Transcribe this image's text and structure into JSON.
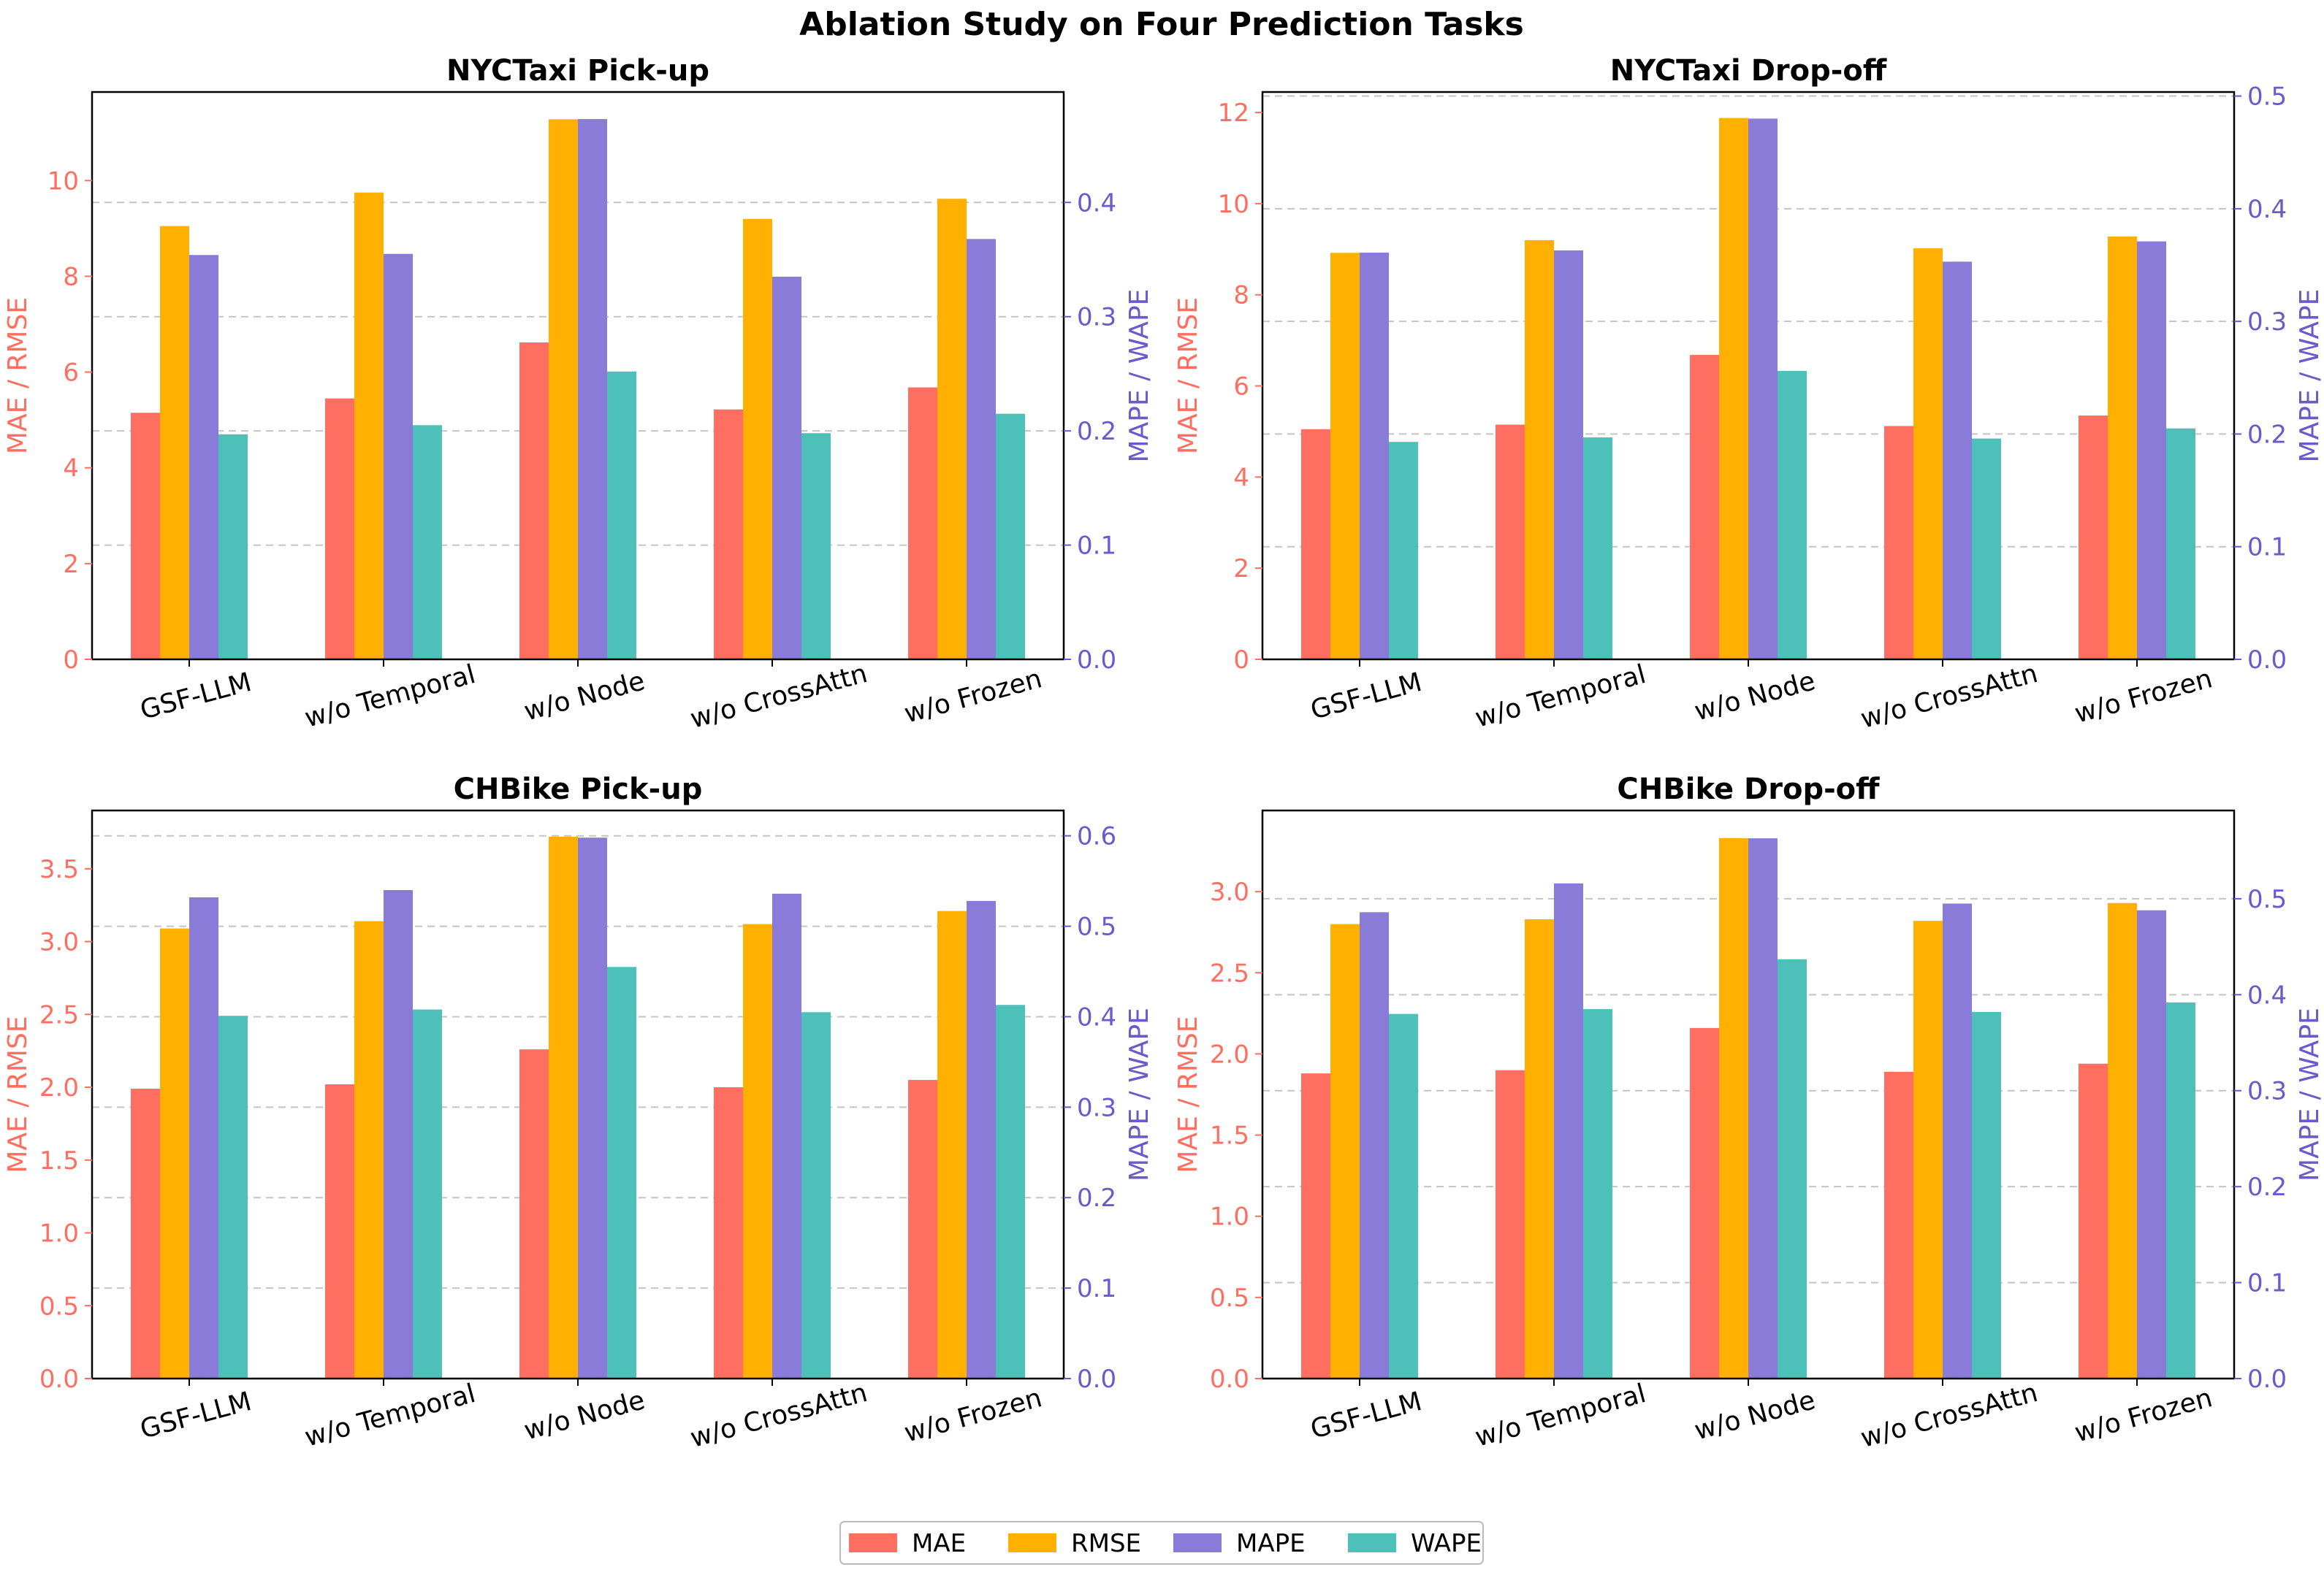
{
  "chart_data": {
    "type": "bar",
    "suptitle": "Ablation Study on Four Prediction Tasks",
    "categories": [
      "GSF-LLM",
      "w/o Temporal",
      "w/o Node",
      "w/o CrossAttn",
      "w/o Frozen"
    ],
    "left_axis_label": "MAE / RMSE",
    "right_axis_label": "MAPE / WAPE",
    "legend": [
      "MAE",
      "RMSE",
      "MAPE",
      "WAPE"
    ],
    "colors": {
      "MAE": "#ff6f61",
      "RMSE": "#ffb000",
      "MAPE": "#8a7bd8",
      "WAPE": "#4dc1b9",
      "left_axis": "#ff6f61",
      "right_axis": "#6a5acd",
      "grid": "#b0b0b0"
    },
    "panels": [
      {
        "title": "NYCTaxi Pick-up",
        "ylim": [
          0,
          11.85
        ],
        "yticks": [
          0,
          2,
          4,
          6,
          8,
          10
        ],
        "ytick_labels": [
          "0",
          "2",
          "4",
          "6",
          "8",
          "10"
        ],
        "y2lim": [
          0,
          0.4967
        ],
        "y2ticks": [
          0.0,
          0.1,
          0.2,
          0.3,
          0.4
        ],
        "y2tick_labels": [
          "0.0",
          "0.1",
          "0.2",
          "0.3",
          "0.4"
        ],
        "series": [
          {
            "name": "MAE",
            "axis": "left",
            "values": [
              5.15,
              5.45,
              6.62,
              5.22,
              5.68
            ]
          },
          {
            "name": "RMSE",
            "axis": "left",
            "values": [
              9.05,
              9.75,
              11.28,
              9.2,
              9.62
            ]
          },
          {
            "name": "MAPE",
            "axis": "right",
            "values": [
              0.354,
              0.355,
              0.473,
              0.335,
              0.368
            ]
          },
          {
            "name": "WAPE",
            "axis": "right",
            "values": [
              0.197,
              0.205,
              0.252,
              0.198,
              0.215
            ]
          }
        ]
      },
      {
        "title": "NYCTaxi Drop-off",
        "ylim": [
          0,
          12.45
        ],
        "yticks": [
          0,
          2,
          4,
          6,
          8,
          10,
          12
        ],
        "ytick_labels": [
          "0",
          "2",
          "4",
          "6",
          "8",
          "10",
          "12"
        ],
        "y2lim": [
          0,
          0.5036
        ],
        "y2ticks": [
          0.0,
          0.1,
          0.2,
          0.3,
          0.4,
          0.5
        ],
        "y2tick_labels": [
          "0.0",
          "0.1",
          "0.2",
          "0.3",
          "0.4",
          "0.5"
        ],
        "series": [
          {
            "name": "MAE",
            "axis": "left",
            "values": [
              5.05,
              5.15,
              6.68,
              5.12,
              5.35
            ]
          },
          {
            "name": "RMSE",
            "axis": "left",
            "values": [
              8.92,
              9.2,
              11.88,
              9.02,
              9.28
            ]
          },
          {
            "name": "MAPE",
            "axis": "right",
            "values": [
              0.361,
              0.363,
              0.48,
              0.353,
              0.371
            ]
          },
          {
            "name": "WAPE",
            "axis": "right",
            "values": [
              0.193,
              0.197,
              0.256,
              0.196,
              0.205
            ]
          }
        ]
      },
      {
        "title": "CHBike Pick-up",
        "ylim": [
          0,
          3.9
        ],
        "yticks": [
          0.0,
          0.5,
          1.0,
          1.5,
          2.0,
          2.5,
          3.0,
          3.5
        ],
        "ytick_labels": [
          "0.0",
          "0.5",
          "1.0",
          "1.5",
          "2.0",
          "2.5",
          "3.0",
          "3.5"
        ],
        "y2lim": [
          0,
          0.628
        ],
        "y2ticks": [
          0.0,
          0.1,
          0.2,
          0.3,
          0.4,
          0.5,
          0.6
        ],
        "y2tick_labels": [
          "0.0",
          "0.1",
          "0.2",
          "0.3",
          "0.4",
          "0.5",
          "0.6"
        ],
        "series": [
          {
            "name": "MAE",
            "axis": "left",
            "values": [
              1.99,
              2.02,
              2.26,
              2.0,
              2.05
            ]
          },
          {
            "name": "RMSE",
            "axis": "left",
            "values": [
              3.09,
              3.14,
              3.72,
              3.12,
              3.21
            ]
          },
          {
            "name": "MAPE",
            "axis": "right",
            "values": [
              0.532,
              0.54,
              0.598,
              0.536,
              0.528
            ]
          },
          {
            "name": "WAPE",
            "axis": "right",
            "values": [
              0.401,
              0.408,
              0.455,
              0.405,
              0.413
            ]
          }
        ]
      },
      {
        "title": "CHBike Drop-off",
        "ylim": [
          0,
          3.5
        ],
        "yticks": [
          0.0,
          0.5,
          1.0,
          1.5,
          2.0,
          2.5,
          3.0
        ],
        "ytick_labels": [
          "0.0",
          "0.5",
          "1.0",
          "1.5",
          "2.0",
          "2.5",
          "3.0"
        ],
        "y2lim": [
          0,
          0.592
        ],
        "y2ticks": [
          0.0,
          0.1,
          0.2,
          0.3,
          0.4,
          0.5
        ],
        "y2tick_labels": [
          "0.0",
          "0.1",
          "0.2",
          "0.3",
          "0.4",
          "0.5"
        ],
        "series": [
          {
            "name": "MAE",
            "axis": "left",
            "values": [
              1.88,
              1.9,
              2.16,
              1.89,
              1.94
            ]
          },
          {
            "name": "RMSE",
            "axis": "left",
            "values": [
              2.8,
              2.83,
              3.33,
              2.82,
              2.93
            ]
          },
          {
            "name": "MAPE",
            "axis": "right",
            "values": [
              0.486,
              0.516,
              0.563,
              0.495,
              0.488
            ]
          },
          {
            "name": "WAPE",
            "axis": "right",
            "values": [
              0.38,
              0.385,
              0.437,
              0.382,
              0.392
            ]
          }
        ]
      }
    ]
  }
}
